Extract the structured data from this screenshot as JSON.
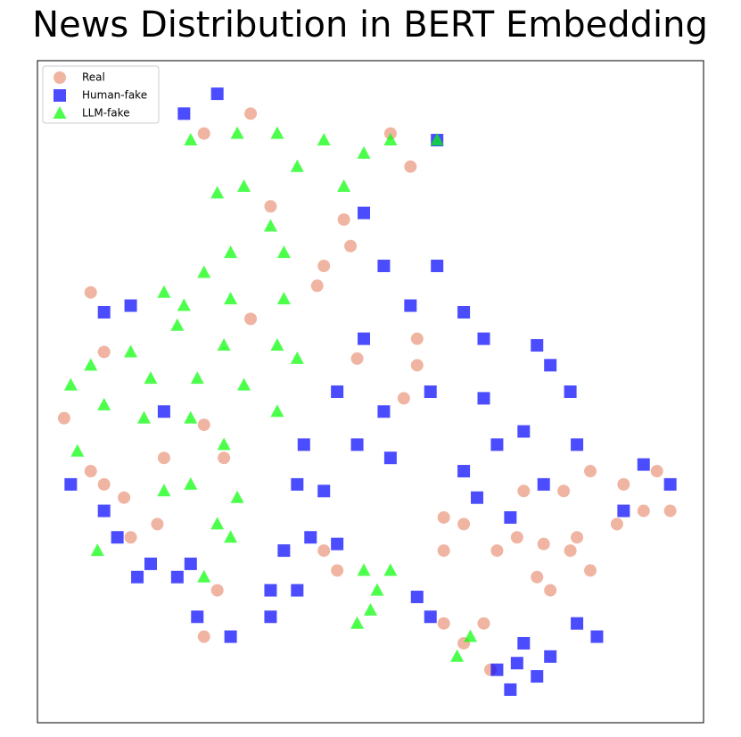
{
  "chart_data": {
    "type": "scatter",
    "title": "News Distribution in BERT Embedding",
    "xlim": [
      0,
      100
    ],
    "ylim": [
      0,
      100
    ],
    "legend": "upper left",
    "opacity": 0.7,
    "series": [
      {
        "name": "Real",
        "color": "#e9967a",
        "marker": "circle",
        "x": [
          25,
          32,
          56,
          46,
          47,
          43,
          8,
          10,
          4,
          8,
          10,
          25,
          28,
          19,
          32,
          42,
          48,
          57,
          57,
          55,
          61,
          64,
          61,
          69,
          72,
          76,
          80,
          79,
          83,
          88,
          93,
          95,
          87,
          91,
          75,
          67,
          64,
          68,
          61,
          45,
          43,
          14,
          18,
          25,
          27,
          13,
          81,
          73,
          53,
          35,
          83,
          77
        ],
        "values": [
          89,
          92,
          84,
          76,
          72,
          69,
          65,
          56,
          46,
          38,
          36,
          45,
          40,
          40,
          61,
          66,
          55,
          58,
          54,
          49,
          31,
          30,
          26,
          26,
          28,
          27,
          26,
          35,
          38,
          36,
          38,
          32,
          30,
          32,
          22,
          15,
          12,
          8,
          15,
          23,
          26,
          28,
          30,
          13,
          20,
          34,
          28,
          35,
          89,
          78,
          23,
          20
        ]
      },
      {
        "name": "Human-fake",
        "color": "#0000ff",
        "marker": "square",
        "x": [
          27,
          22,
          60,
          49,
          52,
          60,
          56,
          49,
          64,
          67,
          75,
          77,
          80,
          45,
          52,
          40,
          39,
          43,
          48,
          53,
          59,
          67,
          69,
          73,
          64,
          41,
          45,
          37,
          66,
          71,
          91,
          95,
          88,
          81,
          76,
          10,
          12,
          17,
          15,
          5,
          23,
          21,
          24,
          29,
          35,
          39,
          35,
          59,
          57,
          73,
          77,
          81,
          84,
          69,
          72,
          75,
          71,
          19,
          14,
          10
        ],
        "values": [
          95,
          92,
          88,
          77,
          69,
          69,
          63,
          58,
          62,
          58,
          57,
          54,
          50,
          50,
          47,
          42,
          36,
          35,
          42,
          40,
          50,
          49,
          42,
          44,
          38,
          28,
          27,
          26,
          34,
          31,
          39,
          36,
          32,
          42,
          36,
          32,
          28,
          24,
          22,
          36,
          24,
          22,
          16,
          13,
          20,
          20,
          16,
          16,
          19,
          12,
          10,
          15,
          13,
          8,
          9,
          7,
          5,
          47,
          63,
          62
        ]
      },
      {
        "name": "LLM-fake",
        "color": "#00ff00",
        "marker": "triangle",
        "x": [
          23,
          30,
          36,
          43,
          49,
          53,
          31,
          39,
          46,
          27,
          35,
          29,
          25,
          37,
          19,
          22,
          29,
          37,
          21,
          28,
          36,
          39,
          14,
          8,
          5,
          10,
          17,
          24,
          31,
          36,
          16,
          23,
          28,
          6,
          19,
          23,
          30,
          27,
          29,
          9,
          25,
          49,
          51,
          48,
          50,
          53,
          65,
          63,
          60
        ],
        "values": [
          88,
          89,
          89,
          88,
          86,
          88,
          81,
          84,
          81,
          80,
          75,
          71,
          68,
          71,
          65,
          63,
          64,
          64,
          60,
          57,
          57,
          55,
          56,
          54,
          51,
          48,
          52,
          52,
          51,
          47,
          46,
          46,
          42,
          41,
          35,
          36,
          34,
          30,
          28,
          26,
          22,
          23,
          20,
          15,
          17,
          23,
          13,
          10,
          88
        ]
      }
    ]
  }
}
